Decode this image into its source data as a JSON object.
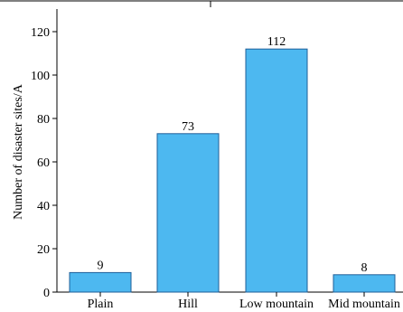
{
  "chart_data": {
    "type": "bar",
    "title": "",
    "xlabel": "",
    "ylabel": "Number of disaster sites/A",
    "categories": [
      "Plain",
      "Hill",
      "Low mountain",
      "Mid mountain"
    ],
    "values": [
      9,
      73,
      112,
      8
    ],
    "data_labels": [
      "9",
      "73",
      "112",
      "8"
    ],
    "ylim": [
      0,
      125
    ],
    "yticks": [
      0,
      20,
      40,
      60,
      80,
      100,
      120
    ],
    "ytick_labels": [
      "0",
      "20",
      "40",
      "60",
      "80",
      "100",
      "120"
    ],
    "grid": false,
    "legend": "none",
    "bar_color": "#4db8f0",
    "bar_edge_color": "#1f5f99"
  }
}
